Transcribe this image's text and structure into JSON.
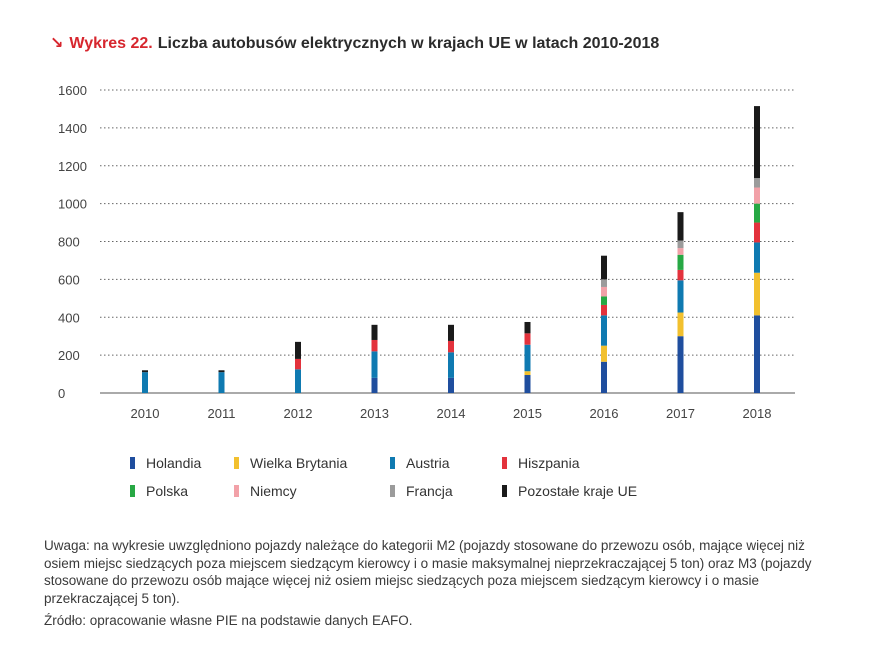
{
  "header": {
    "arrow": "↘",
    "prefix": "Wykres 22.",
    "title": "Liczba autobusów elektrycznych w krajach UE w latach 2010-2018"
  },
  "chart_data": {
    "type": "bar",
    "stacked": true,
    "categories": [
      "2010",
      "2011",
      "2012",
      "2013",
      "2014",
      "2015",
      "2016",
      "2017",
      "2018"
    ],
    "ylim": [
      0,
      1600
    ],
    "yticks": [
      0,
      200,
      400,
      600,
      800,
      1000,
      1200,
      1400,
      1600
    ],
    "grid": "horizontal-dotted",
    "legend_position": "bottom",
    "series": [
      {
        "name": "Holandia",
        "color": "#1f4e9e",
        "values": [
          0,
          0,
          0,
          80,
          80,
          95,
          165,
          300,
          410
        ]
      },
      {
        "name": "Wielka Brytania",
        "color": "#f2c02e",
        "values": [
          0,
          0,
          0,
          0,
          0,
          20,
          85,
          125,
          225
        ]
      },
      {
        "name": "Austria",
        "color": "#0f7ab1",
        "values": [
          110,
          110,
          125,
          140,
          135,
          140,
          160,
          170,
          160
        ]
      },
      {
        "name": "Hiszpania",
        "color": "#e3323c",
        "values": [
          0,
          0,
          55,
          60,
          60,
          60,
          55,
          55,
          105
        ]
      },
      {
        "name": "Polska",
        "color": "#27a844",
        "values": [
          0,
          0,
          0,
          0,
          0,
          0,
          45,
          80,
          100
        ]
      },
      {
        "name": "Niemcy",
        "color": "#f2a1a8",
        "values": [
          0,
          0,
          0,
          0,
          0,
          0,
          50,
          35,
          85
        ]
      },
      {
        "name": "Francja",
        "color": "#9b9b9b",
        "values": [
          0,
          0,
          0,
          0,
          0,
          0,
          40,
          40,
          50
        ]
      },
      {
        "name": "Pozostałe kraje UE",
        "color": "#1a1a1a",
        "values": [
          10,
          10,
          90,
          80,
          85,
          60,
          125,
          150,
          380
        ]
      }
    ]
  },
  "note": "Uwaga: na wykresie uwzględniono pojazdy należące do kategorii M2 (pojazdy stosowane do przewozu osób, mające więcej niż osiem miejsc siedzących poza miejscem siedzącym kierowcy i o masie maksymalnej nieprzekraczającej 5 ton) oraz M3 (pojazdy stosowane do przewozu osób mające więcej niż osiem miejsc siedzących poza miejscem siedzącym kierowcy i o masie przekraczającej 5 ton).",
  "source": "Źródło: opracowanie własne PIE na podstawie danych EAFO."
}
